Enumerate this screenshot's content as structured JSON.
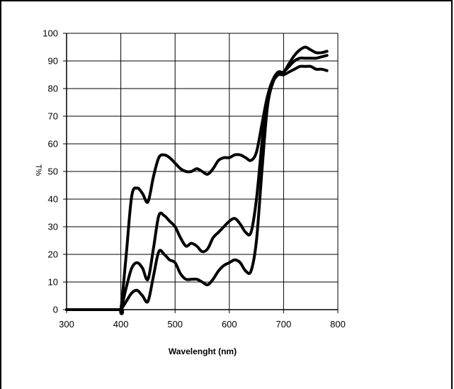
{
  "chart_data": {
    "type": "line",
    "title": "",
    "xlabel": "Wavelenght (nm)",
    "ylabel": "T%",
    "xlim": [
      300,
      800
    ],
    "ylim": [
      0,
      100
    ],
    "xticks": [
      300,
      400,
      500,
      600,
      700,
      800
    ],
    "yticks": [
      0,
      10,
      20,
      30,
      40,
      50,
      60,
      70,
      80,
      90,
      100
    ],
    "grid": true,
    "legend": "none",
    "series": [
      {
        "x": [
          300,
          395,
          400,
          410,
          420,
          430,
          440,
          450,
          460,
          470,
          480,
          490,
          500,
          510,
          520,
          530,
          540,
          550,
          560,
          570,
          580,
          590,
          600,
          610,
          620,
          630,
          640,
          650,
          660,
          670,
          680,
          690,
          700,
          710,
          720,
          730,
          740,
          750,
          760,
          770,
          780
        ],
        "values": [
          0,
          0,
          0,
          20,
          41,
          44,
          42,
          39,
          48,
          55,
          56,
          55,
          53,
          51,
          50,
          50,
          51,
          50,
          49,
          51,
          54,
          55,
          55,
          56,
          56,
          55,
          54,
          57,
          67,
          77,
          83,
          85,
          85,
          86,
          87,
          88,
          88,
          88,
          87,
          87,
          86.5
        ]
      },
      {
        "x": [
          300,
          395,
          400,
          410,
          420,
          430,
          440,
          450,
          460,
          470,
          480,
          490,
          500,
          510,
          520,
          530,
          540,
          550,
          560,
          570,
          580,
          590,
          600,
          610,
          620,
          630,
          640,
          650,
          660,
          670,
          680,
          690,
          700,
          710,
          720,
          730,
          740,
          750,
          760,
          770,
          780
        ],
        "values": [
          0,
          0,
          0,
          8,
          15,
          17,
          15,
          11,
          22,
          34,
          34,
          32,
          30,
          26,
          23,
          24,
          23,
          21,
          22,
          26,
          28,
          30,
          32,
          33,
          31,
          28,
          28,
          40,
          60,
          76,
          83,
          86,
          86,
          89,
          92,
          94,
          95,
          94,
          93,
          93,
          93.5
        ]
      },
      {
        "x": [
          300,
          395,
          400,
          410,
          420,
          430,
          440,
          450,
          460,
          470,
          480,
          490,
          500,
          510,
          520,
          530,
          540,
          550,
          560,
          570,
          580,
          590,
          600,
          610,
          620,
          630,
          640,
          650,
          660,
          670,
          680,
          690,
          700,
          710,
          720,
          730,
          740,
          750,
          760,
          770,
          780
        ],
        "values": [
          0,
          0,
          0,
          3,
          6,
          7,
          5,
          3,
          12,
          21,
          20,
          18,
          17,
          13,
          11,
          11,
          11,
          10,
          9,
          11,
          14,
          16,
          17,
          18,
          17,
          14,
          14,
          25,
          50,
          73,
          82,
          85,
          86,
          88,
          90,
          91,
          91,
          91,
          91,
          91.5,
          92
        ]
      }
    ],
    "line_color": "#000000"
  }
}
